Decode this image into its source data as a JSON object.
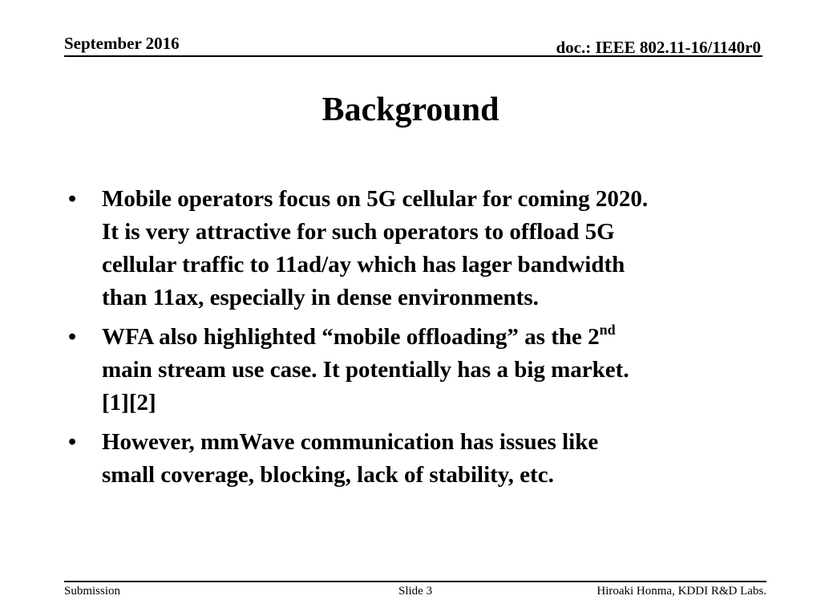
{
  "header": {
    "date": "September 2016",
    "doc_id": "doc.: IEEE 802.11-16/1140r0"
  },
  "slide": {
    "title": "Background",
    "bullet_symbol": "•",
    "bullets": [
      {
        "line1": "Mobile operators focus on 5G cellular for coming 2020.",
        "line2": "It is very attractive for such operators to offload 5G",
        "line3": "cellular traffic to 11ad/ay which has lager bandwidth",
        "line4": "than 11ax, especially in dense environments."
      },
      {
        "line1": "WFA also highlighted “mobile offloading” as the 2",
        "superscript": "nd",
        "line2": "main stream use case. It potentially has a big market.",
        "line3": "[1][2]"
      },
      {
        "line1": "However, mmWave communication has issues like",
        "line2": "small coverage, blocking, lack of stability, etc."
      }
    ]
  },
  "footer": {
    "left": "Submission",
    "center": "Slide 3",
    "right": "Hiroaki Honma, KDDI R&D Labs."
  }
}
